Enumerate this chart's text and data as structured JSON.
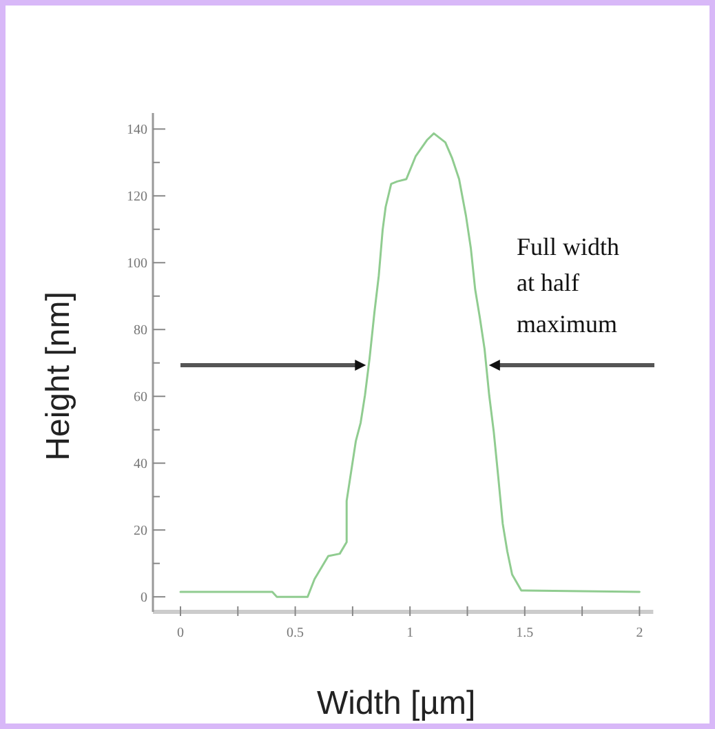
{
  "chart_data": {
    "type": "line",
    "xlabel": "Width [µm]",
    "ylabel": "Height [nm]",
    "xlim": [
      -0.12,
      2.06
    ],
    "ylim": [
      -4.5,
      144.8
    ],
    "xticks": [
      0,
      {
        "value": 0.25,
        "label": null
      },
      0.5,
      {
        "value": 0.75,
        "label": null
      },
      1,
      {
        "value": 1.25,
        "label": null
      },
      1.5,
      {
        "value": 1.75,
        "label": null
      },
      2
    ],
    "yticks": [
      0,
      {
        "value": 10,
        "label": null
      },
      20,
      {
        "value": 30,
        "label": null
      },
      40,
      {
        "value": 50,
        "label": null
      },
      60,
      {
        "value": 70,
        "label": null
      },
      80,
      {
        "value": 90,
        "label": null
      },
      100,
      {
        "value": 110,
        "label": null
      },
      120,
      {
        "value": 130,
        "label": null
      },
      140
    ],
    "grid": false,
    "marker": "none",
    "line_style": "solid",
    "x": [
      0,
      0.4,
      0.42,
      0.554,
      0.584,
      0.644,
      0.694,
      0.724,
      0.724,
      0.764,
      0.785,
      0.804,
      0.824,
      0.845,
      0.864,
      0.881,
      0.894,
      0.918,
      0.944,
      0.984,
      1.025,
      1.074,
      1.104,
      1.154,
      1.184,
      1.214,
      1.244,
      1.265,
      1.284,
      1.304,
      1.325,
      1.345,
      1.365,
      1.385,
      1.404,
      1.424,
      1.445,
      1.485,
      2.0
    ],
    "series": [
      {
        "color": "#90cc90",
        "values": [
          1.5,
          1.5,
          0,
          0,
          5.3,
          12.2,
          12.9,
          16.4,
          28.7,
          46.6,
          52.1,
          60.4,
          71.4,
          85.1,
          96.1,
          109.9,
          116.7,
          123.6,
          124.3,
          125,
          131.9,
          136.7,
          138.7,
          136,
          131.2,
          125,
          114,
          104.4,
          92,
          83.7,
          74.1,
          60.4,
          49.4,
          35.6,
          21.9,
          13.6,
          6.7,
          1.9,
          1.5
        ]
      }
    ],
    "annotations": [
      "Full width\nat half\nmaximum"
    ]
  }
}
